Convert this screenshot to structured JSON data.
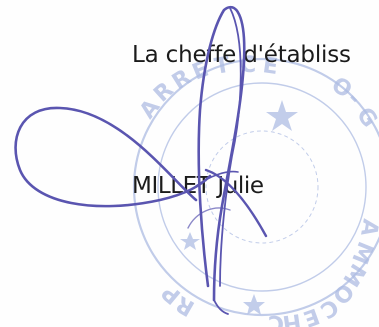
{
  "document": {
    "role_title": "La cheffe d'établiss",
    "signatory_name": "MILLET Julie"
  },
  "stamp": {
    "visible_text": "ARRET CE... ...MANCHE",
    "icon": "official-round-seal-icon",
    "ink_color": "#b7c4e6"
  },
  "signature": {
    "icon": "handwritten-signature-icon",
    "ink_color": "#5a55b0"
  },
  "colors": {
    "text": "#1b1b1b",
    "paper": "#fefefe"
  }
}
